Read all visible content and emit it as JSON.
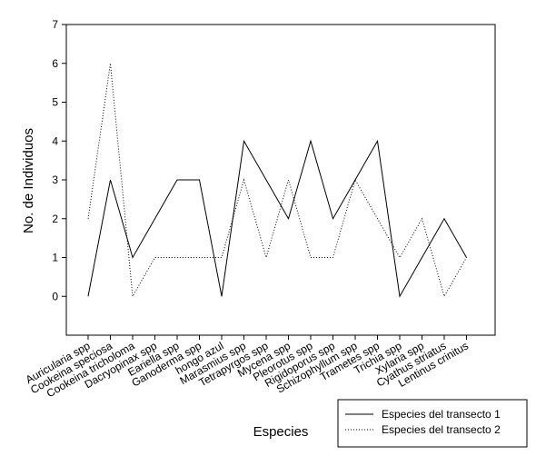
{
  "chart_data": {
    "type": "line",
    "xlabel": "Especies",
    "ylabel": "No. de Individuos",
    "ylim": [
      -1,
      7
    ],
    "yticks": [
      0,
      1,
      2,
      3,
      4,
      5,
      6,
      7
    ],
    "grid": false,
    "legend_position": "bottom-right",
    "categories": [
      "Auricularia spp",
      "Cookeina speciosa",
      "Cookeina tricholoma",
      "Dacryopinax spp",
      "Eariella spp",
      "Ganoderma spp",
      "hongo azul",
      "Marasmius spp",
      "Tetrapyrgos spp",
      "Mycena spp",
      "Pleorotus spp",
      "Rigidoporus spp",
      "Schizophyllum spp",
      "Trametes spp",
      "Trichia spp",
      "Xylaria spp",
      "Cyathus striatus",
      "Lentinus crinitus"
    ],
    "series": [
      {
        "name": "Especies del transecto 1",
        "style": "solid",
        "color": "#000000",
        "values": [
          0,
          3,
          1,
          2,
          3,
          3,
          0,
          4,
          3,
          2,
          4,
          2,
          3,
          4,
          0,
          1,
          2,
          1
        ]
      },
      {
        "name": "Especies del transecto 2",
        "style": "dotted",
        "color": "#000000",
        "values": [
          2,
          6,
          0,
          1,
          1,
          1,
          1,
          3,
          1,
          3,
          1,
          1,
          3,
          2,
          1,
          2,
          0,
          1
        ]
      }
    ]
  }
}
